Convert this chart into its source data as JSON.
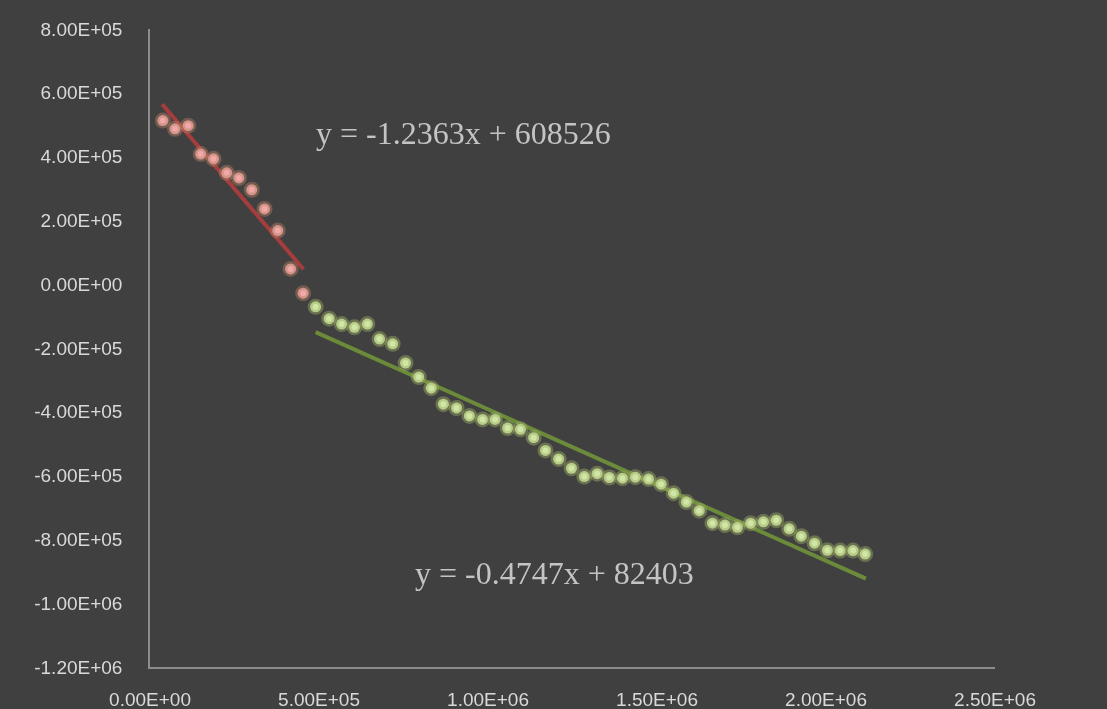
{
  "chart_data": {
    "type": "scatter",
    "line_style": "solid",
    "xlim": [
      0,
      2500000
    ],
    "ylim": [
      -1200000,
      800000
    ],
    "xticks": [
      {
        "value": 0,
        "label": "0.00E+00"
      },
      {
        "value": 500000,
        "label": "5.00E+05"
      },
      {
        "value": 1000000,
        "label": "1.00E+06"
      },
      {
        "value": 1500000,
        "label": "1.50E+06"
      },
      {
        "value": 2000000,
        "label": "2.00E+06"
      },
      {
        "value": 2500000,
        "label": "2.50E+06"
      }
    ],
    "yticks": [
      {
        "value": 800000,
        "label": "8.00E+05"
      },
      {
        "value": 600000,
        "label": "6.00E+05"
      },
      {
        "value": 400000,
        "label": "4.00E+05"
      },
      {
        "value": 200000,
        "label": "2.00E+05"
      },
      {
        "value": 0,
        "label": "0.00E+00"
      },
      {
        "value": -200000,
        "label": "-2.00E+05"
      },
      {
        "value": -400000,
        "label": "-4.00E+05"
      },
      {
        "value": -600000,
        "label": "-6.00E+05"
      },
      {
        "value": -800000,
        "label": "-8.00E+05"
      },
      {
        "value": -1000000,
        "label": "-1.00E+06"
      },
      {
        "value": -1200000,
        "label": "-1.20E+06"
      }
    ],
    "series": [
      {
        "type": "line",
        "color": "#a53d3d",
        "x": [
          36000,
          454000
        ],
        "values": [
          564000,
          47000
        ]
      },
      {
        "type": "line",
        "color": "#6b8a3a",
        "x": [
          490000,
          2118000
        ],
        "values": [
          -150000,
          -923000
        ]
      },
      {
        "marker": "circle",
        "color": "#f0a8a8",
        "x": [
          38000,
          74000,
          113000,
          150000,
          188000,
          227000,
          263000,
          301000,
          339000,
          378000,
          416000,
          453000
        ],
        "values": [
          513000,
          487000,
          497000,
          408000,
          393000,
          349000,
          333000,
          296000,
          236000,
          168000,
          48000,
          -28000
        ]
      },
      {
        "marker": "circle",
        "color": "#cfe6a6",
        "x": [
          490000,
          530000,
          567000,
          605000,
          643000,
          679000,
          718000,
          756000,
          795000,
          832000,
          868000,
          907000,
          945000,
          984000,
          1021000,
          1058000,
          1096000,
          1135000,
          1170000,
          1209000,
          1247000,
          1285000,
          1323000,
          1359000,
          1398000,
          1436000,
          1475000,
          1512000,
          1549000,
          1587000,
          1625000,
          1664000,
          1701000,
          1738000,
          1777000,
          1815000,
          1853000,
          1891000,
          1927000,
          1966000,
          2004000,
          2042000,
          2080000,
          2116000
        ],
        "values": [
          -71000,
          -108000,
          -125000,
          -135000,
          -125000,
          -172000,
          -187000,
          -247000,
          -291000,
          -326000,
          -376000,
          -388000,
          -413000,
          -424000,
          -424000,
          -451000,
          -455000,
          -481000,
          -521000,
          -548000,
          -577000,
          -603000,
          -594000,
          -606000,
          -608000,
          -605000,
          -611000,
          -627000,
          -655000,
          -683000,
          -710000,
          -749000,
          -755000,
          -762000,
          -749000,
          -745000,
          -740000,
          -767000,
          -790000,
          -812000,
          -834000,
          -835000,
          -835000,
          -846000
        ]
      }
    ],
    "annotations": [
      "y = -1.2363x + 608526",
      "y = -0.4747x + 82403"
    ]
  }
}
